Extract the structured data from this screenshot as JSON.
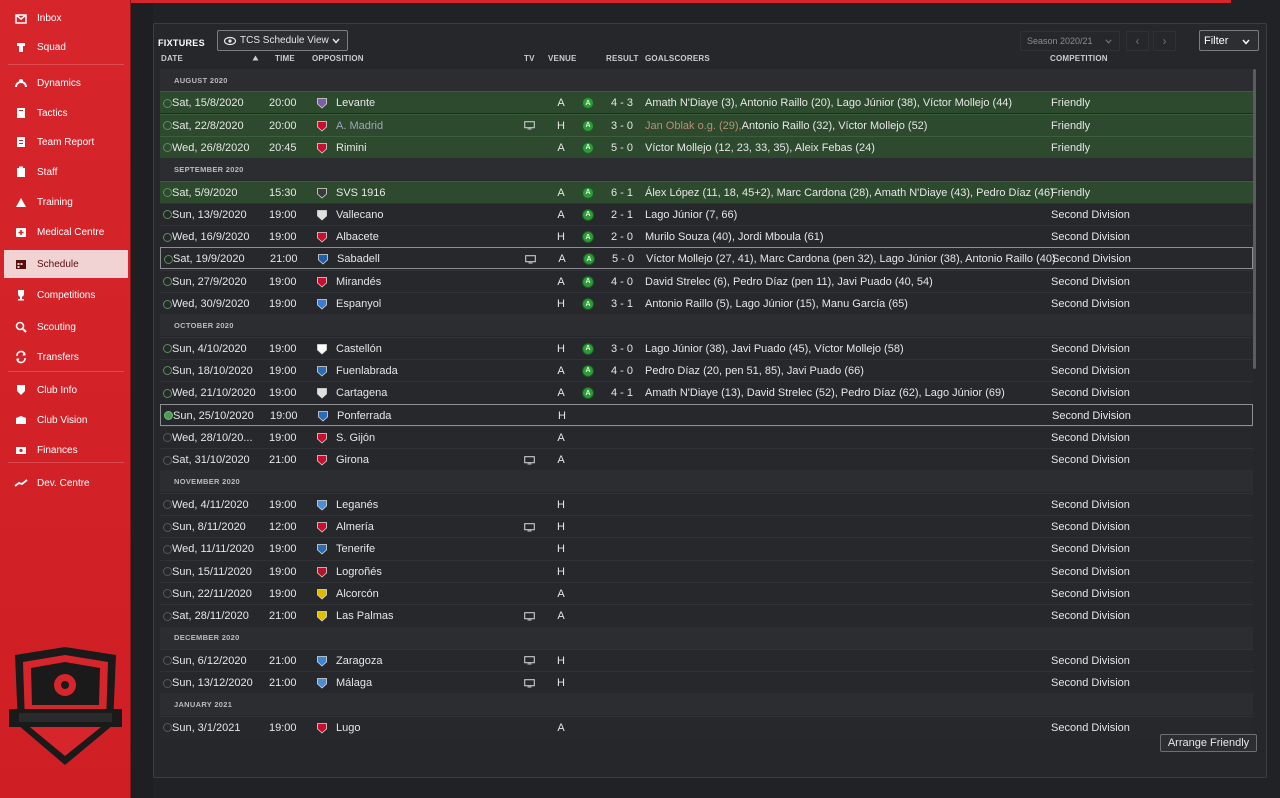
{
  "sidebar": {
    "items": [
      {
        "label": "Inbox",
        "icon": "inbox-icon"
      },
      {
        "label": "Squad",
        "icon": "squad-icon"
      },
      {
        "label": "Dynamics",
        "icon": "dynamics-icon"
      },
      {
        "label": "Tactics",
        "icon": "tactics-icon"
      },
      {
        "label": "Team Report",
        "icon": "team-report-icon"
      },
      {
        "label": "Staff",
        "icon": "staff-icon"
      },
      {
        "label": "Training",
        "icon": "training-icon"
      },
      {
        "label": "Medical Centre",
        "icon": "medical-icon"
      },
      {
        "label": "Schedule",
        "icon": "calendar-icon"
      },
      {
        "label": "Competitions",
        "icon": "trophy-icon"
      },
      {
        "label": "Scouting",
        "icon": "scouting-icon"
      },
      {
        "label": "Transfers",
        "icon": "transfers-icon"
      },
      {
        "label": "Club Info",
        "icon": "club-info-icon"
      },
      {
        "label": "Club Vision",
        "icon": "club-vision-icon"
      },
      {
        "label": "Finances",
        "icon": "finances-icon"
      },
      {
        "label": "Dev. Centre",
        "icon": "dev-centre-icon"
      }
    ],
    "active": "Schedule"
  },
  "header": {
    "title": "FIXTURES",
    "view_label": "TCS Schedule View",
    "season_label": "Season 2020/21",
    "filter_label": "Filter"
  },
  "columns": {
    "date": "DATE",
    "time": "TIME",
    "opposition": "OPPOSITION",
    "tv": "TV",
    "venue": "VENUE",
    "result": "RESULT",
    "goalscorers": "GOALSCORERS",
    "competition": "COMPETITION"
  },
  "months": [
    "AUGUST 2020",
    "SEPTEMBER 2020",
    "OCTOBER 2020",
    "NOVEMBER 2020",
    "DECEMBER 2020",
    "JANUARY 2021"
  ],
  "fixtures": [
    {
      "date": "Sat, 15/8/2020",
      "time": "20:00",
      "opposition": "Levante",
      "tv": false,
      "venue": "A",
      "result": "4 - 3",
      "scorers_prefix": "",
      "scorers": "Amath N'Diaye (3), Antonio Raillo (20), Lago Júnior (38), Víctor Mollejo (44)",
      "competition": "Friendly"
    },
    {
      "date": "Sat, 22/8/2020",
      "time": "20:00",
      "opposition": "A. Madrid",
      "tv": true,
      "venue": "H",
      "result": "3 - 0",
      "scorers_prefix": "Jan Oblak o.g. (29), ",
      "scorers": "Antonio Raillo (32), Víctor Mollejo (52)",
      "competition": "Friendly"
    },
    {
      "date": "Wed, 26/8/2020",
      "time": "20:45",
      "opposition": "Rimini",
      "tv": false,
      "venue": "A",
      "result": "5 - 0",
      "scorers_prefix": "",
      "scorers": "Víctor Mollejo (12, 23, 33, 35), Aleix Febas (24)",
      "competition": "Friendly"
    },
    {
      "date": "Sat, 5/9/2020",
      "time": "15:30",
      "opposition": "SVS 1916",
      "tv": false,
      "venue": "A",
      "result": "6 - 1",
      "scorers_prefix": "",
      "scorers": "Álex López (11, 18, 45+2), Marc Cardona (28), Amath N'Diaye (43), Pedro Díaz (46)",
      "competition": "Friendly"
    },
    {
      "date": "Sun, 13/9/2020",
      "time": "19:00",
      "opposition": "Vallecano",
      "tv": false,
      "venue": "A",
      "result": "2 - 1",
      "scorers_prefix": "",
      "scorers": "Lago Júnior (7, 66)",
      "competition": "Second Division"
    },
    {
      "date": "Wed, 16/9/2020",
      "time": "19:00",
      "opposition": "Albacete",
      "tv": false,
      "venue": "H",
      "result": "2 - 0",
      "scorers_prefix": "",
      "scorers": "Murilo Souza (40), Jordi Mboula (61)",
      "competition": "Second Division"
    },
    {
      "date": "Sat, 19/9/2020",
      "time": "21:00",
      "opposition": "Sabadell",
      "tv": true,
      "venue": "A",
      "result": "5 - 0",
      "scorers_prefix": "",
      "scorers": "Víctor Mollejo (27, 41), Marc Cardona (pen 32), Lago Júnior (38), Antonio Raillo (40)",
      "competition": "Second Division"
    },
    {
      "date": "Sun, 27/9/2020",
      "time": "19:00",
      "opposition": "Mirandés",
      "tv": false,
      "venue": "A",
      "result": "4 - 0",
      "scorers_prefix": "",
      "scorers": "David Strelec (6), Pedro Díaz (pen 11), Javi Puado (40, 54)",
      "competition": "Second Division"
    },
    {
      "date": "Wed, 30/9/2020",
      "time": "19:00",
      "opposition": "Espanyol",
      "tv": false,
      "venue": "H",
      "result": "3 - 1",
      "scorers_prefix": "",
      "scorers": "Antonio Raillo (5), Lago Júnior (15), Manu García (65)",
      "competition": "Second Division"
    },
    {
      "date": "Sun, 4/10/2020",
      "time": "19:00",
      "opposition": "Castellón",
      "tv": false,
      "venue": "H",
      "result": "3 - 0",
      "scorers_prefix": "",
      "scorers": "Lago Júnior (38), Javi Puado (45), Víctor Mollejo (58)",
      "competition": "Second Division"
    },
    {
      "date": "Sun, 18/10/2020",
      "time": "19:00",
      "opposition": "Fuenlabrada",
      "tv": false,
      "venue": "A",
      "result": "4 - 0",
      "scorers_prefix": "",
      "scorers": "Pedro Díaz (20, pen 51, 85), Javi Puado (66)",
      "competition": "Second Division"
    },
    {
      "date": "Wed, 21/10/2020",
      "time": "19:00",
      "opposition": "Cartagena",
      "tv": false,
      "venue": "A",
      "result": "4 - 1",
      "scorers_prefix": "",
      "scorers": "Amath N'Diaye (13), David Strelec (52), Pedro Díaz (62), Lago Júnior (69)",
      "competition": "Second Division"
    },
    {
      "date": "Sun, 25/10/2020",
      "time": "19:00",
      "opposition": "Ponferrada",
      "tv": false,
      "venue": "H",
      "result": "",
      "scorers_prefix": "",
      "scorers": "",
      "competition": "Second Division"
    },
    {
      "date": "Wed, 28/10/20...",
      "time": "19:00",
      "opposition": "S. Gijón",
      "tv": false,
      "venue": "A",
      "result": "",
      "scorers_prefix": "",
      "scorers": "",
      "competition": "Second Division"
    },
    {
      "date": "Sat, 31/10/2020",
      "time": "21:00",
      "opposition": "Girona",
      "tv": true,
      "venue": "A",
      "result": "",
      "scorers_prefix": "",
      "scorers": "",
      "competition": "Second Division"
    },
    {
      "date": "Wed, 4/11/2020",
      "time": "19:00",
      "opposition": "Leganés",
      "tv": false,
      "venue": "H",
      "result": "",
      "scorers_prefix": "",
      "scorers": "",
      "competition": "Second Division"
    },
    {
      "date": "Sun, 8/11/2020",
      "time": "12:00",
      "opposition": "Almería",
      "tv": true,
      "venue": "H",
      "result": "",
      "scorers_prefix": "",
      "scorers": "",
      "competition": "Second Division"
    },
    {
      "date": "Wed, 11/11/2020",
      "time": "19:00",
      "opposition": "Tenerife",
      "tv": false,
      "venue": "H",
      "result": "",
      "scorers_prefix": "",
      "scorers": "",
      "competition": "Second Division"
    },
    {
      "date": "Sun, 15/11/2020",
      "time": "19:00",
      "opposition": "Logroñés",
      "tv": false,
      "venue": "H",
      "result": "",
      "scorers_prefix": "",
      "scorers": "",
      "competition": "Second Division"
    },
    {
      "date": "Sun, 22/11/2020",
      "time": "19:00",
      "opposition": "Alcorcón",
      "tv": false,
      "venue": "A",
      "result": "",
      "scorers_prefix": "",
      "scorers": "",
      "competition": "Second Division"
    },
    {
      "date": "Sat, 28/11/2020",
      "time": "21:00",
      "opposition": "Las Palmas",
      "tv": true,
      "venue": "A",
      "result": "",
      "scorers_prefix": "",
      "scorers": "",
      "competition": "Second Division"
    },
    {
      "date": "Sun, 6/12/2020",
      "time": "21:00",
      "opposition": "Zaragoza",
      "tv": true,
      "venue": "H",
      "result": "",
      "scorers_prefix": "",
      "scorers": "",
      "competition": "Second Division"
    },
    {
      "date": "Sun, 13/12/2020",
      "time": "21:00",
      "opposition": "Málaga",
      "tv": true,
      "venue": "H",
      "result": "",
      "scorers_prefix": "",
      "scorers": "",
      "competition": "Second Division"
    },
    {
      "date": "Sun, 3/1/2021",
      "time": "19:00",
      "opposition": "Lugo",
      "tv": false,
      "venue": "A",
      "result": "",
      "scorers_prefix": "",
      "scorers": "",
      "competition": "Second Division"
    }
  ],
  "result_badge": "A",
  "footer": {
    "arrange_label": "Arrange Friendly"
  },
  "colors": {
    "sidebar_red": "#d6262c",
    "friendly_row": "#2d4a2e",
    "win_badge": "#2f9a3a",
    "background": "#202226"
  }
}
